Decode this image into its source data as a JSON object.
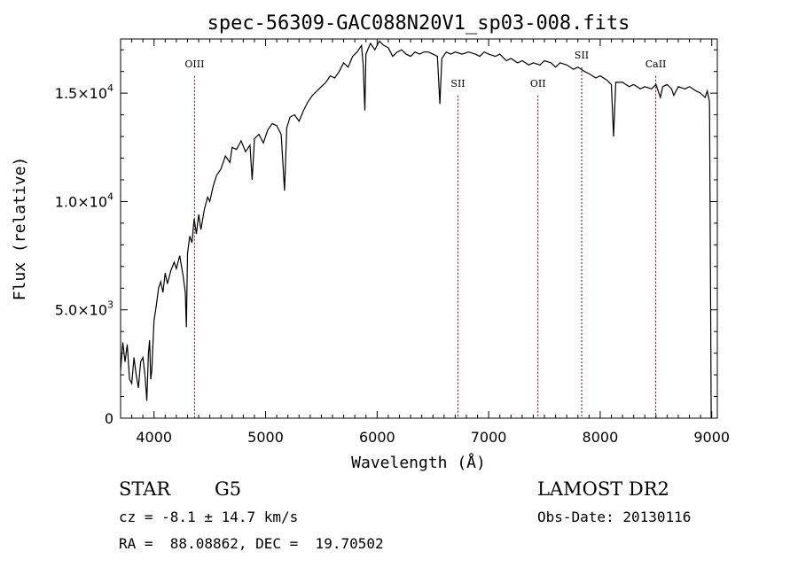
{
  "chart_data": {
    "type": "line",
    "title": "spec-56309-GAC088N20V1_sp03-008.fits",
    "xlabel": "Wavelength (Å)",
    "ylabel": "Flux (relative)",
    "xlim": [
      3700,
      9050
    ],
    "ylim": [
      0,
      17500
    ],
    "xticks": [
      {
        "value": 4000,
        "label": "4000"
      },
      {
        "value": 5000,
        "label": "5000"
      },
      {
        "value": 6000,
        "label": "6000"
      },
      {
        "value": 7000,
        "label": "7000"
      },
      {
        "value": 8000,
        "label": "8000"
      },
      {
        "value": 9000,
        "label": "9000"
      }
    ],
    "yticks": [
      {
        "value": 0,
        "mant": "0",
        "exp": ""
      },
      {
        "value": 5000,
        "mant": "5.0×10",
        "exp": "3"
      },
      {
        "value": 10000,
        "mant": "1.0×10",
        "exp": "4"
      },
      {
        "value": 15000,
        "mant": "1.5×10",
        "exp": "4"
      }
    ],
    "line_color": "#000000",
    "marker_color": "#8b0000",
    "lines": [
      {
        "label": "OIII",
        "x": 4363,
        "label_y": 16200
      },
      {
        "label": "SII",
        "x": 6725,
        "label_y": 15300
      },
      {
        "label": "OII",
        "x": 7442,
        "label_y": 15300
      },
      {
        "label": "SII",
        "x": 7834,
        "label_y": 16600
      },
      {
        "label": "CaII",
        "x": 8498,
        "label_y": 16200
      }
    ],
    "series": [
      {
        "points": [
          [
            3700,
            2200
          ],
          [
            3720,
            3500
          ],
          [
            3740,
            2600
          ],
          [
            3760,
            3400
          ],
          [
            3780,
            1800
          ],
          [
            3800,
            1600
          ],
          [
            3820,
            2800
          ],
          [
            3840,
            2000
          ],
          [
            3860,
            1400
          ],
          [
            3880,
            2600
          ],
          [
            3900,
            2800
          ],
          [
            3920,
            1900
          ],
          [
            3935,
            800
          ],
          [
            3950,
            3000
          ],
          [
            3960,
            3600
          ],
          [
            3970,
            1800
          ],
          [
            3980,
            2200
          ],
          [
            4000,
            4500
          ],
          [
            4020,
            5200
          ],
          [
            4040,
            6000
          ],
          [
            4060,
            6300
          ],
          [
            4080,
            5800
          ],
          [
            4100,
            6700
          ],
          [
            4120,
            6200
          ],
          [
            4150,
            6800
          ],
          [
            4180,
            7200
          ],
          [
            4200,
            6900
          ],
          [
            4230,
            7500
          ],
          [
            4260,
            6600
          ],
          [
            4280,
            5800
          ],
          [
            4290,
            4200
          ],
          [
            4300,
            7600
          ],
          [
            4320,
            8400
          ],
          [
            4340,
            8100
          ],
          [
            4360,
            9200
          ],
          [
            4380,
            8500
          ],
          [
            4400,
            9400
          ],
          [
            4420,
            8700
          ],
          [
            4450,
            9600
          ],
          [
            4480,
            10200
          ],
          [
            4500,
            10000
          ],
          [
            4530,
            10700
          ],
          [
            4560,
            11200
          ],
          [
            4600,
            11500
          ],
          [
            4640,
            12100
          ],
          [
            4680,
            11800
          ],
          [
            4700,
            12500
          ],
          [
            4740,
            12400
          ],
          [
            4780,
            12800
          ],
          [
            4820,
            12300
          ],
          [
            4860,
            12600
          ],
          [
            4880,
            11000
          ],
          [
            4900,
            12900
          ],
          [
            4940,
            13100
          ],
          [
            4980,
            12700
          ],
          [
            5020,
            13300
          ],
          [
            5060,
            13600
          ],
          [
            5100,
            13500
          ],
          [
            5140,
            13100
          ],
          [
            5170,
            10500
          ],
          [
            5190,
            13400
          ],
          [
            5220,
            13900
          ],
          [
            5260,
            14000
          ],
          [
            5300,
            13700
          ],
          [
            5340,
            14200
          ],
          [
            5380,
            14600
          ],
          [
            5420,
            14900
          ],
          [
            5460,
            15100
          ],
          [
            5500,
            15300
          ],
          [
            5540,
            15500
          ],
          [
            5580,
            15800
          ],
          [
            5620,
            15700
          ],
          [
            5660,
            16000
          ],
          [
            5700,
            16400
          ],
          [
            5740,
            16200
          ],
          [
            5780,
            16700
          ],
          [
            5820,
            16900
          ],
          [
            5860,
            17200
          ],
          [
            5875,
            16300
          ],
          [
            5890,
            14200
          ],
          [
            5900,
            16800
          ],
          [
            5940,
            17300
          ],
          [
            5980,
            17000
          ],
          [
            6020,
            17400
          ],
          [
            6060,
            17200
          ],
          [
            6100,
            17100
          ],
          [
            6140,
            16700
          ],
          [
            6180,
            16900
          ],
          [
            6220,
            17000
          ],
          [
            6260,
            16800
          ],
          [
            6300,
            16700
          ],
          [
            6340,
            16900
          ],
          [
            6380,
            16800
          ],
          [
            6420,
            16900
          ],
          [
            6460,
            16900
          ],
          [
            6500,
            16800
          ],
          [
            6540,
            16700
          ],
          [
            6563,
            14500
          ],
          [
            6580,
            16600
          ],
          [
            6620,
            16900
          ],
          [
            6660,
            16800
          ],
          [
            6700,
            16900
          ],
          [
            6760,
            16800
          ],
          [
            6820,
            16900
          ],
          [
            6880,
            16800
          ],
          [
            6920,
            16700
          ],
          [
            6960,
            16900
          ],
          [
            7000,
            16800
          ],
          [
            7060,
            16700
          ],
          [
            7100,
            16800
          ],
          [
            7160,
            16500
          ],
          [
            7200,
            16600
          ],
          [
            7260,
            16400
          ],
          [
            7300,
            16500
          ],
          [
            7360,
            16300
          ],
          [
            7400,
            16400
          ],
          [
            7460,
            16300
          ],
          [
            7500,
            16500
          ],
          [
            7560,
            16400
          ],
          [
            7600,
            16200
          ],
          [
            7640,
            16400
          ],
          [
            7700,
            16300
          ],
          [
            7760,
            16100
          ],
          [
            7800,
            16200
          ],
          [
            7860,
            16000
          ],
          [
            7900,
            15900
          ],
          [
            7960,
            15700
          ],
          [
            8000,
            15800
          ],
          [
            8060,
            15600
          ],
          [
            8100,
            15400
          ],
          [
            8120,
            13000
          ],
          [
            8140,
            15500
          ],
          [
            8200,
            15500
          ],
          [
            8260,
            15300
          ],
          [
            8300,
            15400
          ],
          [
            8360,
            15200
          ],
          [
            8400,
            15300
          ],
          [
            8460,
            15200
          ],
          [
            8500,
            15400
          ],
          [
            8540,
            14800
          ],
          [
            8560,
            15300
          ],
          [
            8600,
            15400
          ],
          [
            8640,
            15200
          ],
          [
            8660,
            14900
          ],
          [
            8700,
            15300
          ],
          [
            8760,
            15200
          ],
          [
            8800,
            15300
          ],
          [
            8860,
            15100
          ],
          [
            8900,
            15000
          ],
          [
            8940,
            14800
          ],
          [
            8960,
            15100
          ],
          [
            8980,
            14600
          ],
          [
            8990,
            4900
          ],
          [
            8995,
            0
          ]
        ]
      }
    ]
  },
  "info": {
    "object_type": "STAR",
    "subclass": "G5",
    "survey": "LAMOST DR2",
    "redshift": "cz = -8.1 ± 14.7 km/s",
    "obs_date": "Obs-Date: 20130116",
    "coords": "RA =  88.08862, DEC =  19.70502"
  }
}
